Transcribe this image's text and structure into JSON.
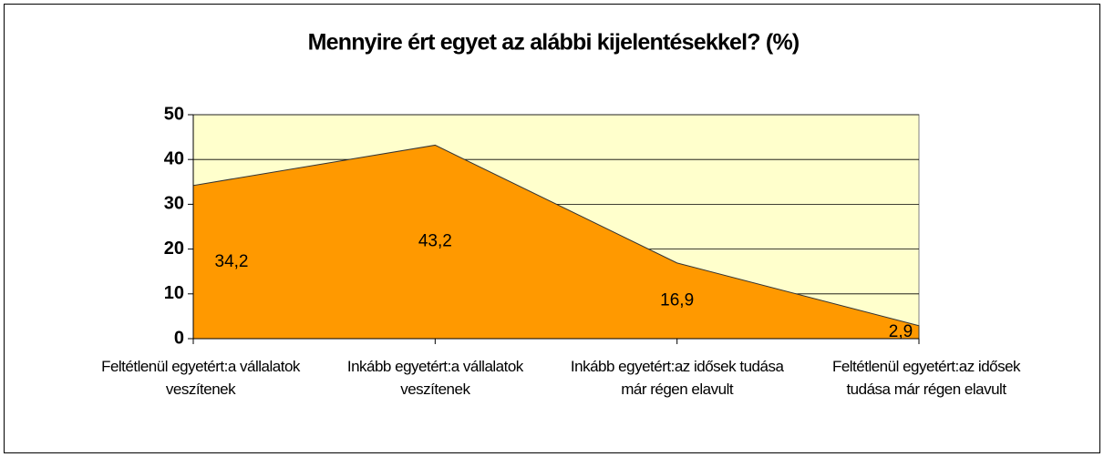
{
  "chart_data": {
    "type": "area",
    "title": "Mennyire ért egyet az alábbi kijelentésekkel? (%)",
    "categories": [
      "Feltétlenül egyetért:a vállalatok veszítenek",
      "Inkább egyetért:a vállalatok veszítenek",
      "Inkább egyetért:az idősek tudása már régen elavult",
      "Feltétlenül egyetért:az idősek tudása már régen elavult"
    ],
    "values": [
      34.2,
      43.2,
      16.9,
      2.9
    ],
    "value_labels": [
      "34,2",
      "43,2",
      "16,9",
      "2,9"
    ],
    "color": "#ff9900",
    "ylim": [
      0,
      50
    ],
    "yticks": [
      0,
      10,
      20,
      30,
      40,
      50
    ],
    "grid": true
  }
}
